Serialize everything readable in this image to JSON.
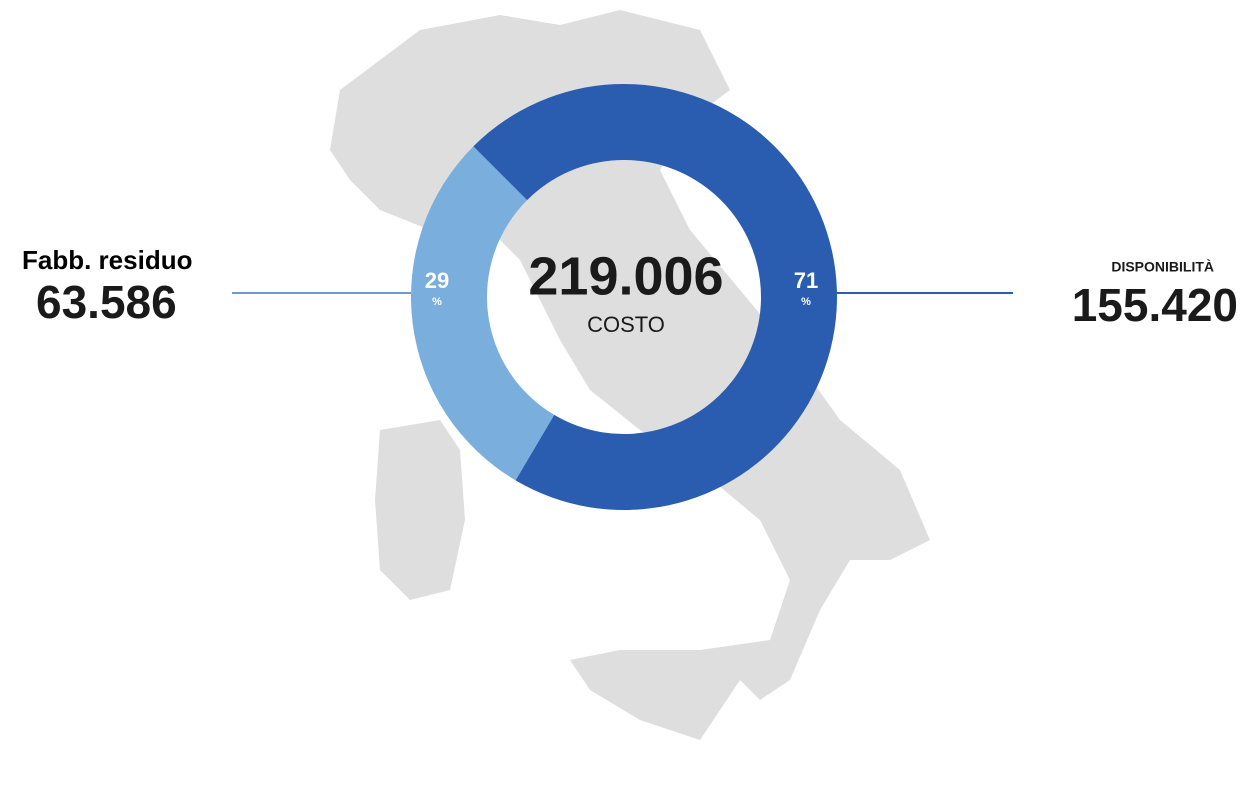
{
  "chart_data": {
    "type": "pie",
    "donut": true,
    "categories": [
      "Fabb. residuo",
      "DISPONIBILITÀ"
    ],
    "values": [
      29,
      71
    ],
    "unit": "%",
    "colors": [
      "#7aaedc",
      "#2a5db0"
    ],
    "amounts": [
      "63.586",
      "155.420"
    ],
    "total": "219.006",
    "total_label": "COSTO"
  }
}
